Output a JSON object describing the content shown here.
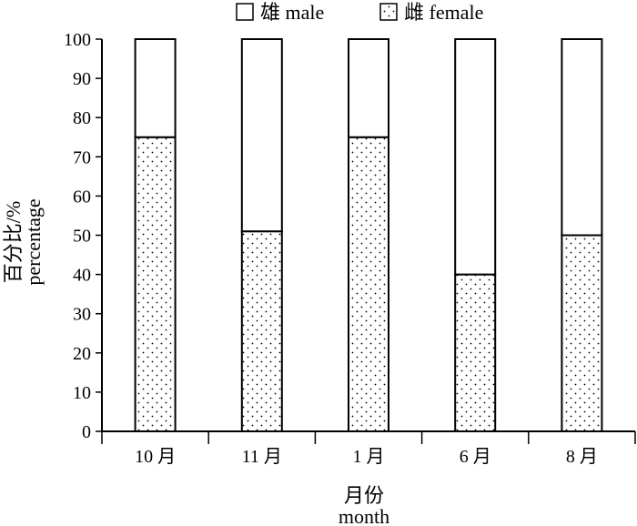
{
  "chart_data": {
    "type": "bar",
    "stacked": true,
    "categories": [
      "10 月",
      "11 月",
      "1 月",
      "6 月",
      "8 月"
    ],
    "series": [
      {
        "name": "雌 female",
        "values": [
          75,
          51,
          75,
          40,
          50
        ],
        "pattern": "dots"
      },
      {
        "name": "雄 male",
        "values": [
          25,
          49,
          25,
          60,
          50
        ],
        "pattern": "none"
      }
    ],
    "xlabel": [
      "月份",
      "month"
    ],
    "ylabel": [
      "百分比/%",
      "percentage"
    ],
    "ylim": [
      0,
      100
    ],
    "yticks": [
      "0",
      "10",
      "20",
      "30",
      "40",
      "50",
      "60",
      "70",
      "80",
      "90",
      "100"
    ],
    "legend": [
      "雄 male",
      "雌 female"
    ],
    "legend_position": "top",
    "grid": false
  }
}
